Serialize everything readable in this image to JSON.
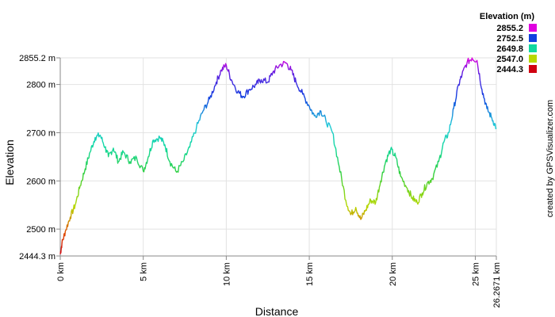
{
  "chart_data": {
    "type": "line",
    "xlabel": "Distance",
    "ylabel": "Elevation",
    "credit": "created by GPSVisualizer.com",
    "xlim": [
      0,
      26.2671
    ],
    "ylim": [
      2444.3,
      2855.2
    ],
    "x_ticks": [
      {
        "value": 0,
        "label": "0 km"
      },
      {
        "value": 5,
        "label": "5 km"
      },
      {
        "value": 10,
        "label": "10 km"
      },
      {
        "value": 15,
        "label": "15 km"
      },
      {
        "value": 20,
        "label": "20 km"
      },
      {
        "value": 25,
        "label": "25 km"
      },
      {
        "value": 26.2671,
        "label": "26.2671 km"
      }
    ],
    "y_ticks": [
      {
        "value": 2444.3,
        "label": "2444.3 m"
      },
      {
        "value": 2500,
        "label": "2500 m"
      },
      {
        "value": 2600,
        "label": "2600 m"
      },
      {
        "value": 2700,
        "label": "2700 m"
      },
      {
        "value": 2800,
        "label": "2800 m"
      },
      {
        "value": 2855.2,
        "label": "2855.2 m"
      }
    ],
    "grid": true,
    "legend": {
      "title": "Elevation (m)",
      "placement": "top-right",
      "entries": [
        {
          "label": "2855.2",
          "color": "#e000e0"
        },
        {
          "label": "2752.5",
          "color": "#1040e0"
        },
        {
          "label": "2649.8",
          "color": "#10d8a0"
        },
        {
          "label": "2547.0",
          "color": "#b8d800"
        },
        {
          "label": "2444.3",
          "color": "#d00010"
        }
      ]
    },
    "series": [
      {
        "x": [
          0,
          0.1,
          0.3,
          0.6,
          0.9,
          1.2,
          1.5,
          1.8,
          2.1,
          2.4,
          2.7,
          2.9,
          3.2,
          3.5,
          3.8,
          4.2,
          4.6,
          5.0,
          5.3,
          5.6,
          6.0,
          6.3,
          6.6,
          7.0,
          7.4,
          7.8,
          8.2,
          8.6,
          9.0,
          9.4,
          9.7,
          10.0,
          10.3,
          10.7,
          11.0,
          11.4,
          11.8,
          12.1,
          12.5,
          12.8,
          13.2,
          13.6,
          13.9,
          14.2,
          14.6,
          15.0,
          15.3,
          15.7,
          16.0,
          16.4,
          16.8,
          17.2,
          17.5,
          17.8,
          18.1,
          18.4,
          18.7,
          19.0,
          19.3,
          19.6,
          19.9,
          20.2,
          20.5,
          20.9,
          21.2,
          21.5,
          21.8,
          22.1,
          22.4,
          22.8,
          23.1,
          23.4,
          23.7,
          24.0,
          24.2,
          24.5,
          24.8,
          25.1,
          25.4,
          25.7,
          26.0,
          26.2671
        ],
        "y": [
          2448,
          2470,
          2495,
          2525,
          2550,
          2590,
          2625,
          2660,
          2690,
          2695,
          2670,
          2650,
          2668,
          2640,
          2660,
          2640,
          2648,
          2620,
          2650,
          2685,
          2690,
          2675,
          2640,
          2618,
          2640,
          2670,
          2710,
          2745,
          2770,
          2805,
          2830,
          2840,
          2810,
          2785,
          2775,
          2790,
          2800,
          2810,
          2805,
          2825,
          2840,
          2845,
          2830,
          2805,
          2780,
          2755,
          2735,
          2745,
          2725,
          2700,
          2630,
          2560,
          2530,
          2545,
          2520,
          2540,
          2560,
          2555,
          2600,
          2640,
          2665,
          2650,
          2610,
          2585,
          2565,
          2555,
          2575,
          2595,
          2605,
          2640,
          2680,
          2700,
          2750,
          2800,
          2820,
          2845,
          2855,
          2850,
          2790,
          2750,
          2730,
          2710
        ]
      }
    ]
  }
}
